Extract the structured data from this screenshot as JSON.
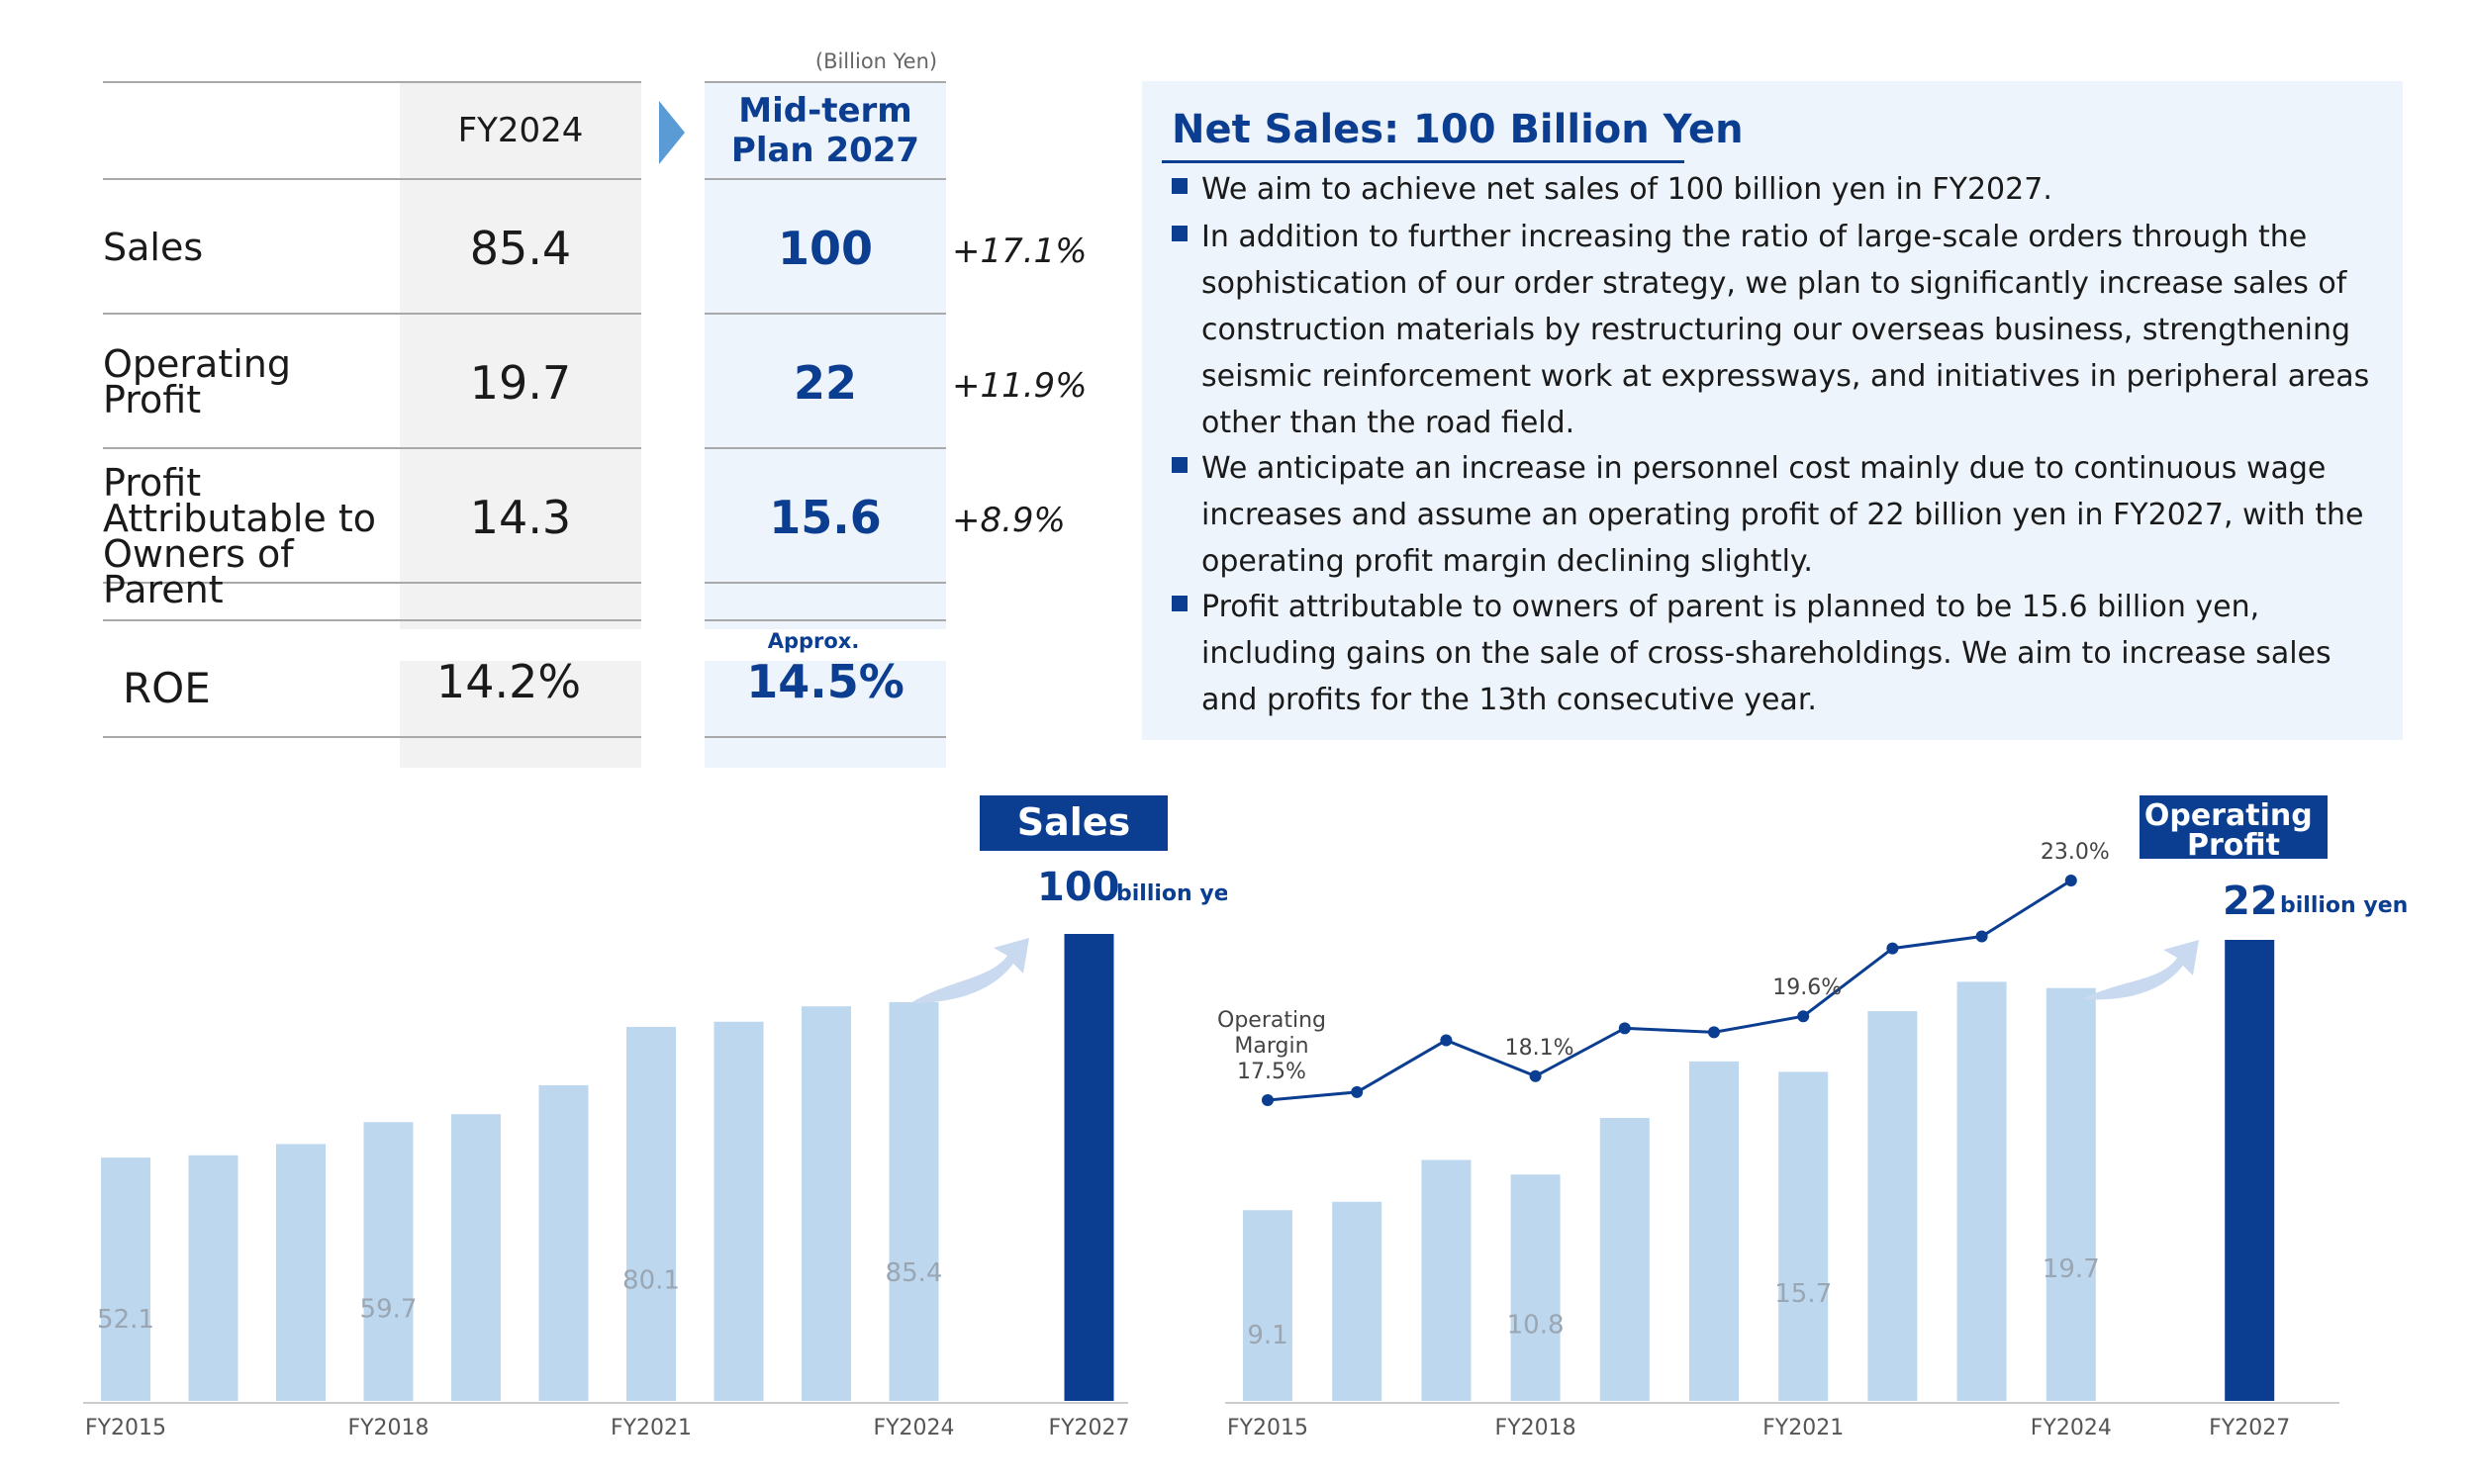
{
  "table": {
    "unit": "(Billion Yen)",
    "header_current": "FY2024",
    "header_plan": "Mid-term Plan 2027",
    "rows": [
      {
        "label": "Sales",
        "current": "85.4",
        "plan": "100",
        "change": "+17.1%"
      },
      {
        "label": "Operating Profit",
        "current": "19.7",
        "plan": "22",
        "change": "+11.9%"
      },
      {
        "label": "Profit Attributable to Owners of Parent",
        "current": "14.3",
        "plan": "15.6",
        "change": "+8.9%"
      }
    ],
    "roe": {
      "label": "ROE",
      "current": "14.2%",
      "plan_prefix": "Approx.",
      "plan": "14.5%"
    }
  },
  "panel": {
    "title": "Net Sales: 100 Billion Yen",
    "bullets": [
      "We aim to achieve net sales of 100 billion yen in FY2027.",
      "In addition to further increasing the ratio of large-scale orders through the sophistication of our order strategy, we plan to significantly increase sales of construction materials by restructuring our overseas business, strengthening seismic reinforcement work at expressways, and initiatives in peripheral areas other than the road field.",
      "We anticipate an increase in personnel cost mainly due to continuous wage increases and assume an operating profit of 22 billion yen in FY2027, with the operating profit margin declining slightly.",
      "Profit attributable to owners of parent is planned to be 15.6 billion yen, including gains on the sale of cross-shareholdings. We aim to increase sales and profits for the 13th consecutive year."
    ]
  },
  "colors": {
    "bar_light": "#bdd7ee",
    "bar_dark": "#0b3d91",
    "line": "#0b3d91",
    "panel_bg": "#eef4fb",
    "arrow": "#c9daf0"
  },
  "chart_data": [
    {
      "type": "bar",
      "title": "Sales",
      "categories": [
        "FY2015",
        "FY2016",
        "FY2017",
        "FY2018",
        "FY2019",
        "FY2020",
        "FY2021",
        "FY2022",
        "FY2023",
        "FY2024",
        "",
        "FY2027"
      ],
      "tick_labels": [
        "FY2015",
        "FY2018",
        "FY2021",
        "FY2024",
        "FY2027"
      ],
      "values": [
        52.1,
        52.6,
        55.0,
        59.7,
        61.4,
        67.6,
        80.1,
        81.2,
        84.5,
        85.4,
        null,
        100
      ],
      "data_labels": [
        {
          "category": "FY2015",
          "text": "52.1"
        },
        {
          "category": "FY2018",
          "text": "59.7"
        },
        {
          "category": "FY2021",
          "text": "80.1"
        },
        {
          "category": "FY2024",
          "text": "85.4"
        }
      ],
      "highlight": {
        "category": "FY2027",
        "value_text": "100",
        "unit_text": "billion yen"
      },
      "ylim": [
        0,
        100
      ]
    },
    {
      "type": "bar",
      "title": "Operating Profit",
      "categories": [
        "FY2015",
        "FY2016",
        "FY2017",
        "FY2018",
        "FY2019",
        "FY2020",
        "FY2021",
        "FY2022",
        "FY2023",
        "FY2024",
        "",
        "FY2027"
      ],
      "tick_labels": [
        "FY2015",
        "FY2018",
        "FY2021",
        "FY2024",
        "FY2027"
      ],
      "values": [
        9.1,
        9.5,
        11.5,
        10.8,
        13.5,
        16.2,
        15.7,
        18.6,
        20.0,
        19.7,
        null,
        22
      ],
      "data_labels": [
        {
          "category": "FY2015",
          "text": "9.1"
        },
        {
          "category": "FY2018",
          "text": "10.8"
        },
        {
          "category": "FY2021",
          "text": "15.7"
        },
        {
          "category": "FY2024",
          "text": "19.7"
        }
      ],
      "highlight": {
        "category": "FY2027",
        "value_text": "22",
        "unit_text": "billion yen"
      },
      "ylim": [
        0,
        22
      ],
      "line_series": {
        "name": "Operating Margin",
        "values": [
          17.5,
          17.7,
          19.0,
          18.1,
          19.3,
          19.2,
          19.6,
          21.3,
          21.6,
          23.0
        ],
        "labels": [
          {
            "category": "FY2015",
            "text": "17.5%",
            "caption": "Operating Margin"
          },
          {
            "category": "FY2018",
            "text": "18.1%"
          },
          {
            "category": "FY2021",
            "text": "19.6%"
          },
          {
            "category": "FY2024",
            "text": "23.0%"
          }
        ]
      }
    }
  ]
}
